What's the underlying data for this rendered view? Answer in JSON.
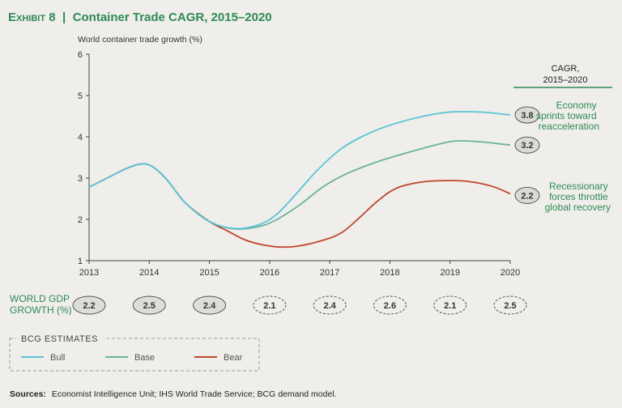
{
  "header": {
    "exhibit": "Exhibit 8",
    "title": "Container Trade CAGR, 2015–2020"
  },
  "chart_data": {
    "type": "line",
    "ylabel": "World container trade growth (%)",
    "ylim": [
      1,
      6
    ],
    "yticks": [
      1,
      2,
      3,
      4,
      5,
      6
    ],
    "xlim": [
      2013,
      2020
    ],
    "xticks": [
      "2013",
      "2014",
      "2015",
      "2016",
      "2017",
      "2018",
      "2019",
      "2020"
    ],
    "grid": false,
    "series": [
      {
        "name": "Bull",
        "color": "#5bc3d6",
        "points": [
          [
            2013.0,
            2.78
          ],
          [
            2013.3,
            3.0
          ],
          [
            2013.6,
            3.22
          ],
          [
            2013.85,
            3.34
          ],
          [
            2014.05,
            3.28
          ],
          [
            2014.3,
            2.95
          ],
          [
            2014.6,
            2.4
          ],
          [
            2015.0,
            1.95
          ],
          [
            2015.4,
            1.78
          ],
          [
            2015.8,
            1.86
          ],
          [
            2016.1,
            2.1
          ],
          [
            2016.4,
            2.55
          ],
          [
            2016.8,
            3.2
          ],
          [
            2017.2,
            3.72
          ],
          [
            2017.6,
            4.05
          ],
          [
            2018.0,
            4.28
          ],
          [
            2018.5,
            4.48
          ],
          [
            2019.0,
            4.6
          ],
          [
            2019.5,
            4.6
          ],
          [
            2020.0,
            4.53
          ]
        ]
      },
      {
        "name": "Base",
        "color": "#6ab39a",
        "points": [
          [
            2013.0,
            2.78
          ],
          [
            2013.3,
            3.0
          ],
          [
            2013.6,
            3.22
          ],
          [
            2013.85,
            3.34
          ],
          [
            2014.05,
            3.28
          ],
          [
            2014.3,
            2.95
          ],
          [
            2014.6,
            2.4
          ],
          [
            2015.0,
            1.95
          ],
          [
            2015.4,
            1.77
          ],
          [
            2015.8,
            1.82
          ],
          [
            2016.1,
            1.98
          ],
          [
            2016.5,
            2.35
          ],
          [
            2016.9,
            2.8
          ],
          [
            2017.3,
            3.12
          ],
          [
            2017.8,
            3.4
          ],
          [
            2018.3,
            3.62
          ],
          [
            2018.8,
            3.82
          ],
          [
            2019.1,
            3.9
          ],
          [
            2019.5,
            3.88
          ],
          [
            2020.0,
            3.8
          ]
        ]
      },
      {
        "name": "Bear",
        "color": "#c0452c",
        "points": [
          [
            2013.0,
            2.78
          ],
          [
            2013.3,
            3.0
          ],
          [
            2013.6,
            3.22
          ],
          [
            2013.85,
            3.34
          ],
          [
            2014.05,
            3.28
          ],
          [
            2014.3,
            2.95
          ],
          [
            2014.6,
            2.4
          ],
          [
            2015.0,
            1.95
          ],
          [
            2015.3,
            1.72
          ],
          [
            2015.6,
            1.5
          ],
          [
            2015.9,
            1.38
          ],
          [
            2016.2,
            1.33
          ],
          [
            2016.5,
            1.36
          ],
          [
            2016.9,
            1.5
          ],
          [
            2017.2,
            1.68
          ],
          [
            2017.5,
            2.05
          ],
          [
            2017.8,
            2.45
          ],
          [
            2018.1,
            2.75
          ],
          [
            2018.5,
            2.9
          ],
          [
            2018.9,
            2.94
          ],
          [
            2019.3,
            2.92
          ],
          [
            2019.7,
            2.8
          ],
          [
            2020.0,
            2.62
          ]
        ]
      }
    ]
  },
  "cagr": {
    "header_line1": "CAGR,",
    "header_line2": "2015–2020",
    "values": [
      {
        "label": "3.8",
        "y": 4.53
      },
      {
        "label": "3.2",
        "y": 3.8
      },
      {
        "label": "2.2",
        "y": 2.58
      }
    ]
  },
  "annotations": {
    "bull": [
      "Economy",
      "sprints toward",
      "reacceleration"
    ],
    "bear": [
      "Recessionary",
      "forces throttle",
      "global recovery"
    ]
  },
  "gdp": {
    "label_line1": "WORLD GDP",
    "label_line2": "GROWTH (%)",
    "values": [
      {
        "year": 2013,
        "value": "2.2",
        "estimate": false
      },
      {
        "year": 2014,
        "value": "2.5",
        "estimate": false
      },
      {
        "year": 2015,
        "value": "2.4",
        "estimate": false
      },
      {
        "year": 2016,
        "value": "2.1",
        "estimate": true
      },
      {
        "year": 2017,
        "value": "2.4",
        "estimate": true
      },
      {
        "year": 2018,
        "value": "2.6",
        "estimate": true
      },
      {
        "year": 2019,
        "value": "2.1",
        "estimate": true
      },
      {
        "year": 2020,
        "value": "2.5",
        "estimate": true
      }
    ]
  },
  "legend": {
    "title": "BCG ESTIMATES",
    "items": [
      {
        "name": "Bull",
        "color": "#5bc3d6"
      },
      {
        "name": "Base",
        "color": "#6ab39a"
      },
      {
        "name": "Bear",
        "color": "#c0452c"
      }
    ]
  },
  "sources": {
    "label": "Sources:",
    "text": "Economist Intelligence Unit; IHS World Trade Service; BCG demand model."
  }
}
